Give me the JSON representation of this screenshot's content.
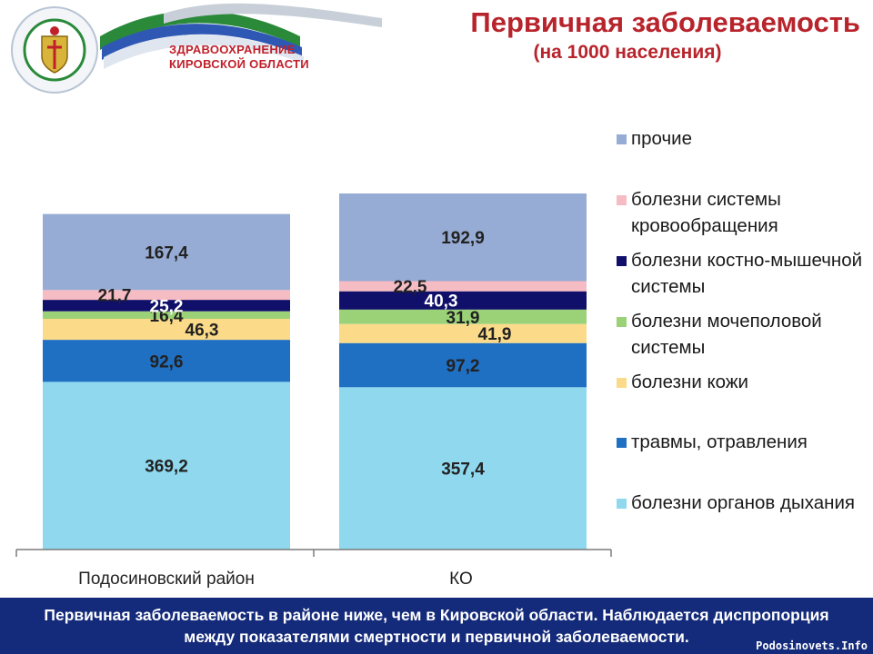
{
  "header": {
    "logo_line1": "ЗДРАВООХРАНЕНИЕ",
    "logo_line2": "КИРОВСКОЙ ОБЛАСТИ",
    "title": "Первичная заболеваемость",
    "subtitle": "(на 1000 населения)"
  },
  "colors": {
    "accent_red": "#b8242c",
    "footer_bg": "#142a7a"
  },
  "chart_data": {
    "type": "bar",
    "stacked": true,
    "categories": [
      "Подосиновский район",
      "КО"
    ],
    "series": [
      {
        "name": "болезни органов дыхания",
        "values": [
          369.2,
          357.4
        ],
        "color": "#8fd8ee"
      },
      {
        "name": "травмы, отравления",
        "values": [
          92.6,
          97.2
        ],
        "color": "#1f6fc2"
      },
      {
        "name": "болезни кожи",
        "values": [
          46.3,
          41.9
        ],
        "color": "#fbdb89"
      },
      {
        "name": "болезни мочеполовой системы",
        "values": [
          16.4,
          31.9
        ],
        "color": "#9bd277"
      },
      {
        "name": "болезни костно-мышечной системы",
        "values": [
          25.2,
          40.3
        ],
        "color": "#10106a"
      },
      {
        "name": "болезни системы кровообращения",
        "values": [
          21.7,
          22.5
        ],
        "color": "#f6bcc3"
      },
      {
        "name": "прочие",
        "values": [
          167.4,
          192.9
        ],
        "color": "#97acd4"
      }
    ],
    "value_labels": [
      [
        "369,2",
        "357,4"
      ],
      [
        "92,6",
        "97,2"
      ],
      [
        "46,3",
        "41,9"
      ],
      [
        "16,4",
        "31,9"
      ],
      [
        "25,2",
        "40,3"
      ],
      [
        "21,7",
        "22,5"
      ],
      [
        "167,4",
        "192,9"
      ]
    ],
    "legend_position": "right",
    "grid": false
  },
  "legend": {
    "items": [
      {
        "label": "прочие",
        "color": "#97acd4"
      },
      {
        "label": "болезни системы кровообращения",
        "color": "#f6bcc3"
      },
      {
        "label": "болезни костно-мышечной системы",
        "color": "#10106a"
      },
      {
        "label": "болезни мочеполовой системы",
        "color": "#9bd277"
      },
      {
        "label": "болезни кожи",
        "color": "#fbdb89"
      },
      {
        "label": "травмы, отравления",
        "color": "#1f6fc2"
      },
      {
        "label": "болезни органов дыхания",
        "color": "#8fd8ee"
      }
    ]
  },
  "footer": {
    "text": "Первичная заболеваемость в районе ниже, чем в Кировской области. Наблюдается диспропорция между показателями смертности и первичной заболеваемости.",
    "watermark": "Podosinovets.Info"
  }
}
